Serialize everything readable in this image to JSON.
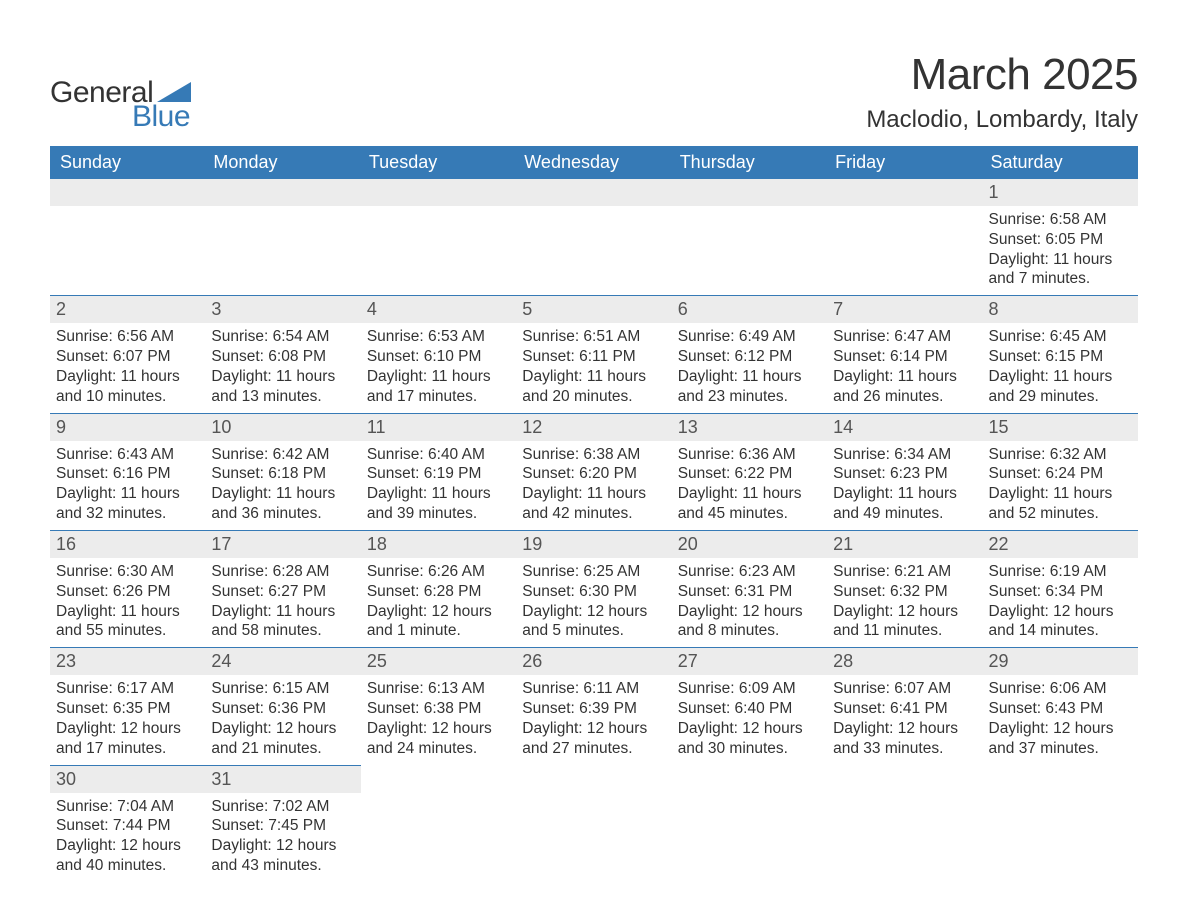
{
  "brand": {
    "name_part1": "General",
    "name_part2": "Blue",
    "text_color": "#333333",
    "accent_color": "#367ab6"
  },
  "title": "March 2025",
  "location": "Maclodio, Lombardy, Italy",
  "calendar": {
    "header_bg": "#367ab6",
    "header_fg": "#ffffff",
    "daynum_bg": "#ececec",
    "daynum_fg": "#555555",
    "row_border": "#367ab6",
    "days_of_week": [
      "Sunday",
      "Monday",
      "Tuesday",
      "Wednesday",
      "Thursday",
      "Friday",
      "Saturday"
    ],
    "weeks": [
      [
        null,
        null,
        null,
        null,
        null,
        null,
        {
          "n": "1",
          "sr": "Sunrise: 6:58 AM",
          "ss": "Sunset: 6:05 PM",
          "d1": "Daylight: 11 hours",
          "d2": "and 7 minutes."
        }
      ],
      [
        {
          "n": "2",
          "sr": "Sunrise: 6:56 AM",
          "ss": "Sunset: 6:07 PM",
          "d1": "Daylight: 11 hours",
          "d2": "and 10 minutes."
        },
        {
          "n": "3",
          "sr": "Sunrise: 6:54 AM",
          "ss": "Sunset: 6:08 PM",
          "d1": "Daylight: 11 hours",
          "d2": "and 13 minutes."
        },
        {
          "n": "4",
          "sr": "Sunrise: 6:53 AM",
          "ss": "Sunset: 6:10 PM",
          "d1": "Daylight: 11 hours",
          "d2": "and 17 minutes."
        },
        {
          "n": "5",
          "sr": "Sunrise: 6:51 AM",
          "ss": "Sunset: 6:11 PM",
          "d1": "Daylight: 11 hours",
          "d2": "and 20 minutes."
        },
        {
          "n": "6",
          "sr": "Sunrise: 6:49 AM",
          "ss": "Sunset: 6:12 PM",
          "d1": "Daylight: 11 hours",
          "d2": "and 23 minutes."
        },
        {
          "n": "7",
          "sr": "Sunrise: 6:47 AM",
          "ss": "Sunset: 6:14 PM",
          "d1": "Daylight: 11 hours",
          "d2": "and 26 minutes."
        },
        {
          "n": "8",
          "sr": "Sunrise: 6:45 AM",
          "ss": "Sunset: 6:15 PM",
          "d1": "Daylight: 11 hours",
          "d2": "and 29 minutes."
        }
      ],
      [
        {
          "n": "9",
          "sr": "Sunrise: 6:43 AM",
          "ss": "Sunset: 6:16 PM",
          "d1": "Daylight: 11 hours",
          "d2": "and 32 minutes."
        },
        {
          "n": "10",
          "sr": "Sunrise: 6:42 AM",
          "ss": "Sunset: 6:18 PM",
          "d1": "Daylight: 11 hours",
          "d2": "and 36 minutes."
        },
        {
          "n": "11",
          "sr": "Sunrise: 6:40 AM",
          "ss": "Sunset: 6:19 PM",
          "d1": "Daylight: 11 hours",
          "d2": "and 39 minutes."
        },
        {
          "n": "12",
          "sr": "Sunrise: 6:38 AM",
          "ss": "Sunset: 6:20 PM",
          "d1": "Daylight: 11 hours",
          "d2": "and 42 minutes."
        },
        {
          "n": "13",
          "sr": "Sunrise: 6:36 AM",
          "ss": "Sunset: 6:22 PM",
          "d1": "Daylight: 11 hours",
          "d2": "and 45 minutes."
        },
        {
          "n": "14",
          "sr": "Sunrise: 6:34 AM",
          "ss": "Sunset: 6:23 PM",
          "d1": "Daylight: 11 hours",
          "d2": "and 49 minutes."
        },
        {
          "n": "15",
          "sr": "Sunrise: 6:32 AM",
          "ss": "Sunset: 6:24 PM",
          "d1": "Daylight: 11 hours",
          "d2": "and 52 minutes."
        }
      ],
      [
        {
          "n": "16",
          "sr": "Sunrise: 6:30 AM",
          "ss": "Sunset: 6:26 PM",
          "d1": "Daylight: 11 hours",
          "d2": "and 55 minutes."
        },
        {
          "n": "17",
          "sr": "Sunrise: 6:28 AM",
          "ss": "Sunset: 6:27 PM",
          "d1": "Daylight: 11 hours",
          "d2": "and 58 minutes."
        },
        {
          "n": "18",
          "sr": "Sunrise: 6:26 AM",
          "ss": "Sunset: 6:28 PM",
          "d1": "Daylight: 12 hours",
          "d2": "and 1 minute."
        },
        {
          "n": "19",
          "sr": "Sunrise: 6:25 AM",
          "ss": "Sunset: 6:30 PM",
          "d1": "Daylight: 12 hours",
          "d2": "and 5 minutes."
        },
        {
          "n": "20",
          "sr": "Sunrise: 6:23 AM",
          "ss": "Sunset: 6:31 PM",
          "d1": "Daylight: 12 hours",
          "d2": "and 8 minutes."
        },
        {
          "n": "21",
          "sr": "Sunrise: 6:21 AM",
          "ss": "Sunset: 6:32 PM",
          "d1": "Daylight: 12 hours",
          "d2": "and 11 minutes."
        },
        {
          "n": "22",
          "sr": "Sunrise: 6:19 AM",
          "ss": "Sunset: 6:34 PM",
          "d1": "Daylight: 12 hours",
          "d2": "and 14 minutes."
        }
      ],
      [
        {
          "n": "23",
          "sr": "Sunrise: 6:17 AM",
          "ss": "Sunset: 6:35 PM",
          "d1": "Daylight: 12 hours",
          "d2": "and 17 minutes."
        },
        {
          "n": "24",
          "sr": "Sunrise: 6:15 AM",
          "ss": "Sunset: 6:36 PM",
          "d1": "Daylight: 12 hours",
          "d2": "and 21 minutes."
        },
        {
          "n": "25",
          "sr": "Sunrise: 6:13 AM",
          "ss": "Sunset: 6:38 PM",
          "d1": "Daylight: 12 hours",
          "d2": "and 24 minutes."
        },
        {
          "n": "26",
          "sr": "Sunrise: 6:11 AM",
          "ss": "Sunset: 6:39 PM",
          "d1": "Daylight: 12 hours",
          "d2": "and 27 minutes."
        },
        {
          "n": "27",
          "sr": "Sunrise: 6:09 AM",
          "ss": "Sunset: 6:40 PM",
          "d1": "Daylight: 12 hours",
          "d2": "and 30 minutes."
        },
        {
          "n": "28",
          "sr": "Sunrise: 6:07 AM",
          "ss": "Sunset: 6:41 PM",
          "d1": "Daylight: 12 hours",
          "d2": "and 33 minutes."
        },
        {
          "n": "29",
          "sr": "Sunrise: 6:06 AM",
          "ss": "Sunset: 6:43 PM",
          "d1": "Daylight: 12 hours",
          "d2": "and 37 minutes."
        }
      ],
      [
        {
          "n": "30",
          "sr": "Sunrise: 7:04 AM",
          "ss": "Sunset: 7:44 PM",
          "d1": "Daylight: 12 hours",
          "d2": "and 40 minutes."
        },
        {
          "n": "31",
          "sr": "Sunrise: 7:02 AM",
          "ss": "Sunset: 7:45 PM",
          "d1": "Daylight: 12 hours",
          "d2": "and 43 minutes."
        },
        null,
        null,
        null,
        null,
        null
      ]
    ]
  }
}
